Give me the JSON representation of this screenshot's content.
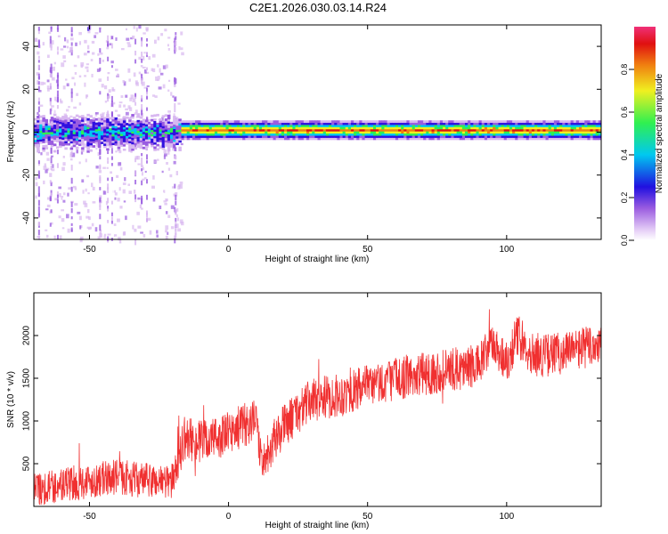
{
  "figure_title": "C2E1.2026.030.03.14.R24",
  "colors": {
    "snr_line": "#f03030",
    "axis": "#000000",
    "colormap": [
      "#ffffff",
      "#d8b8f0",
      "#9a5ce0",
      "#3010e0",
      "#00c8f0",
      "#30f050",
      "#f0f020",
      "#f08010",
      "#e01010",
      "#f03078"
    ]
  },
  "chart_data": [
    {
      "type": "heatmap",
      "title": "",
      "xlabel": "Height of straight line (km)",
      "ylabel": "Frequency (Hz)",
      "xlim": [
        -70,
        134
      ],
      "ylim": [
        -50,
        50
      ],
      "xticks": [
        -50,
        0,
        50,
        100
      ],
      "yticks": [
        -40,
        -20,
        0,
        20,
        40
      ],
      "colorbar": {
        "label": "Normalized spectral amplitude",
        "range": [
          0,
          1
        ],
        "ticks": [
          "0.0",
          "0.2",
          "0.4",
          "0.6",
          "0.8"
        ]
      },
      "description_bands": [
        {
          "x_range": [
            -70,
            -17
          ],
          "freq_center": 0,
          "freq_halfwidth": 5,
          "amplitude": 0.45,
          "noise": "scattered speckle up to +/-50 Hz"
        },
        {
          "x_range": [
            -17,
            134
          ],
          "freq_center": 1,
          "freq_halfwidth": 3,
          "amplitude": 0.9,
          "noise": "none"
        }
      ]
    },
    {
      "type": "line",
      "title": "",
      "xlabel": "Height of straight line (km)",
      "ylabel": "SNR (10 * v/v)",
      "xlim": [
        -70,
        134
      ],
      "ylim": [
        0,
        2500
      ],
      "xticks": [
        -50,
        0,
        50,
        100
      ],
      "yticks": [
        500,
        1000,
        1500,
        2000
      ],
      "series": [
        {
          "name": "SNR",
          "x": [
            -70,
            -60,
            -50,
            -40,
            -30,
            -20,
            -16,
            -10,
            0,
            5,
            10,
            12,
            15,
            20,
            30,
            40,
            50,
            60,
            70,
            80,
            90,
            95,
            100,
            104,
            110,
            120,
            134
          ],
          "values": [
            200,
            250,
            300,
            350,
            300,
            300,
            800,
            750,
            850,
            950,
            1000,
            500,
            700,
            950,
            1250,
            1300,
            1400,
            1500,
            1550,
            1600,
            1650,
            1900,
            1700,
            2000,
            1750,
            1800,
            1900
          ]
        }
      ]
    }
  ]
}
